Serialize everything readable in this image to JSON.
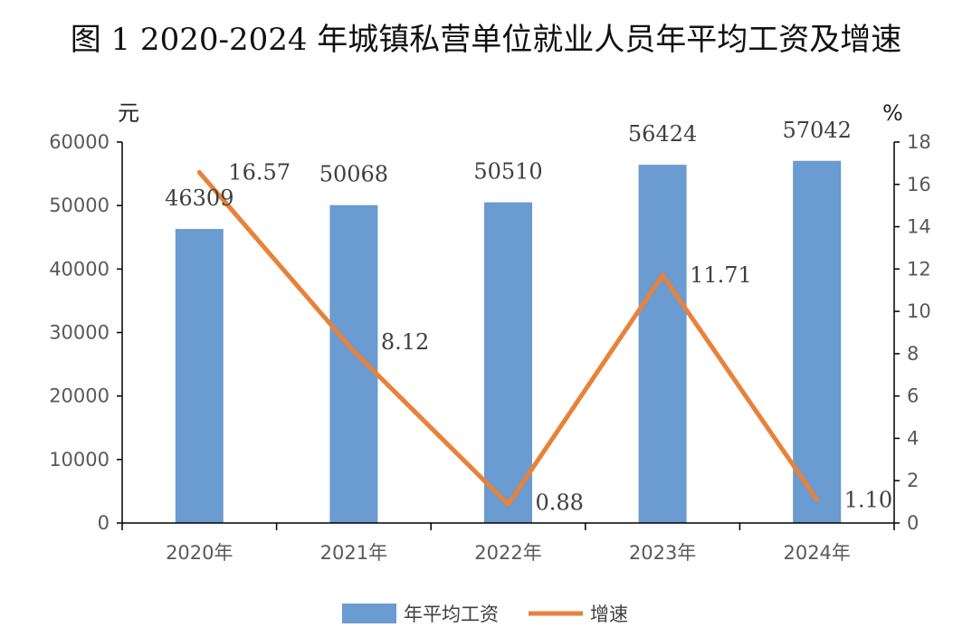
{
  "title": "图 1 2020-2024 年城镇私营单位就业人员年平均工资及增速",
  "chart_data": {
    "type": "bar",
    "title": "图 1 2020-2024 年城镇私营单位就业人员年平均工资及增速",
    "categories": [
      "2020年",
      "2021年",
      "2022年",
      "2023年",
      "2024年"
    ],
    "series": [
      {
        "name": "年平均工资",
        "type": "bar",
        "axis": "left",
        "color": "#6A9BD1",
        "values": [
          46309,
          50068,
          50510,
          56424,
          57042
        ],
        "labels": [
          "46309",
          "50068",
          "50510",
          "56424",
          "57042"
        ]
      },
      {
        "name": "增速",
        "type": "line",
        "axis": "right",
        "color": "#E8823A",
        "values": [
          16.57,
          8.12,
          0.88,
          11.71,
          1.1
        ],
        "labels": [
          "16.57",
          "8.12",
          "0.88",
          "11.71",
          "1.10"
        ]
      }
    ],
    "y_left": {
      "unit": "元",
      "ylim": [
        0,
        60000
      ],
      "ticks": [
        0,
        10000,
        20000,
        30000,
        40000,
        50000,
        60000
      ],
      "tick_labels": [
        "0",
        "10000",
        "20000",
        "30000",
        "40000",
        "50000",
        "60000"
      ]
    },
    "y_right": {
      "unit": "%",
      "ylim": [
        0,
        18
      ],
      "ticks": [
        0,
        2,
        4,
        6,
        8,
        10,
        12,
        14,
        16,
        18
      ],
      "tick_labels": [
        "0",
        "2",
        "4",
        "6",
        "8",
        "10",
        "12",
        "14",
        "16",
        "18"
      ]
    },
    "grid": false,
    "legend": {
      "position": "bottom",
      "entries": [
        "年平均工资",
        "增速"
      ]
    }
  }
}
